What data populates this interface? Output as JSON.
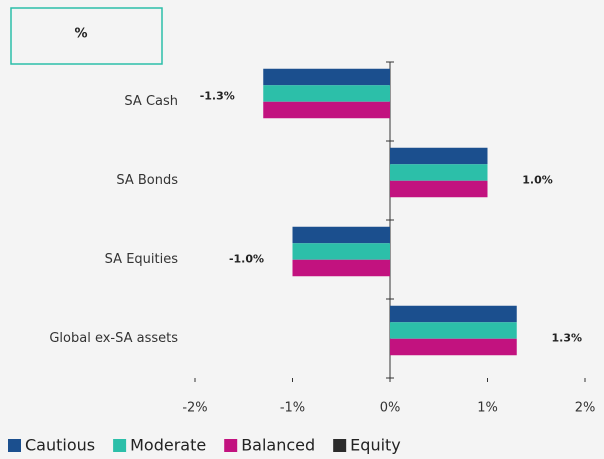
{
  "chart_data": {
    "type": "hbar",
    "title": "%",
    "categories": [
      "SA Cash",
      "SA Bonds",
      "SA Equities",
      "Global ex-SA assets"
    ],
    "series": [
      {
        "name": "Cautious",
        "color": "#1b4f8e",
        "values": [
          -1.3,
          1.0,
          -1.0,
          1.3
        ],
        "value_labels": [
          "-1.3%",
          "1.0%",
          "-1.0%",
          "1.3%"
        ]
      },
      {
        "name": "Moderate",
        "color": "#2cbfa9",
        "values": [
          -1.3,
          1.0,
          -1.0,
          1.3
        ]
      },
      {
        "name": "Balanced",
        "color": "#c2127f",
        "values": [
          -1.3,
          1.0,
          -1.0,
          1.3
        ]
      },
      {
        "name": "Equity",
        "color": "#2b2b2b",
        "values": [
          null,
          null,
          null,
          null
        ]
      }
    ],
    "xlim": [
      -2,
      2
    ],
    "xticks": [
      {
        "value": -2,
        "label": "-2%"
      },
      {
        "value": -1,
        "label": "-1%"
      },
      {
        "value": 0,
        "label": "0%"
      },
      {
        "value": 1,
        "label": "1%"
      },
      {
        "value": 2,
        "label": "2%"
      }
    ],
    "legend": "bottom"
  }
}
